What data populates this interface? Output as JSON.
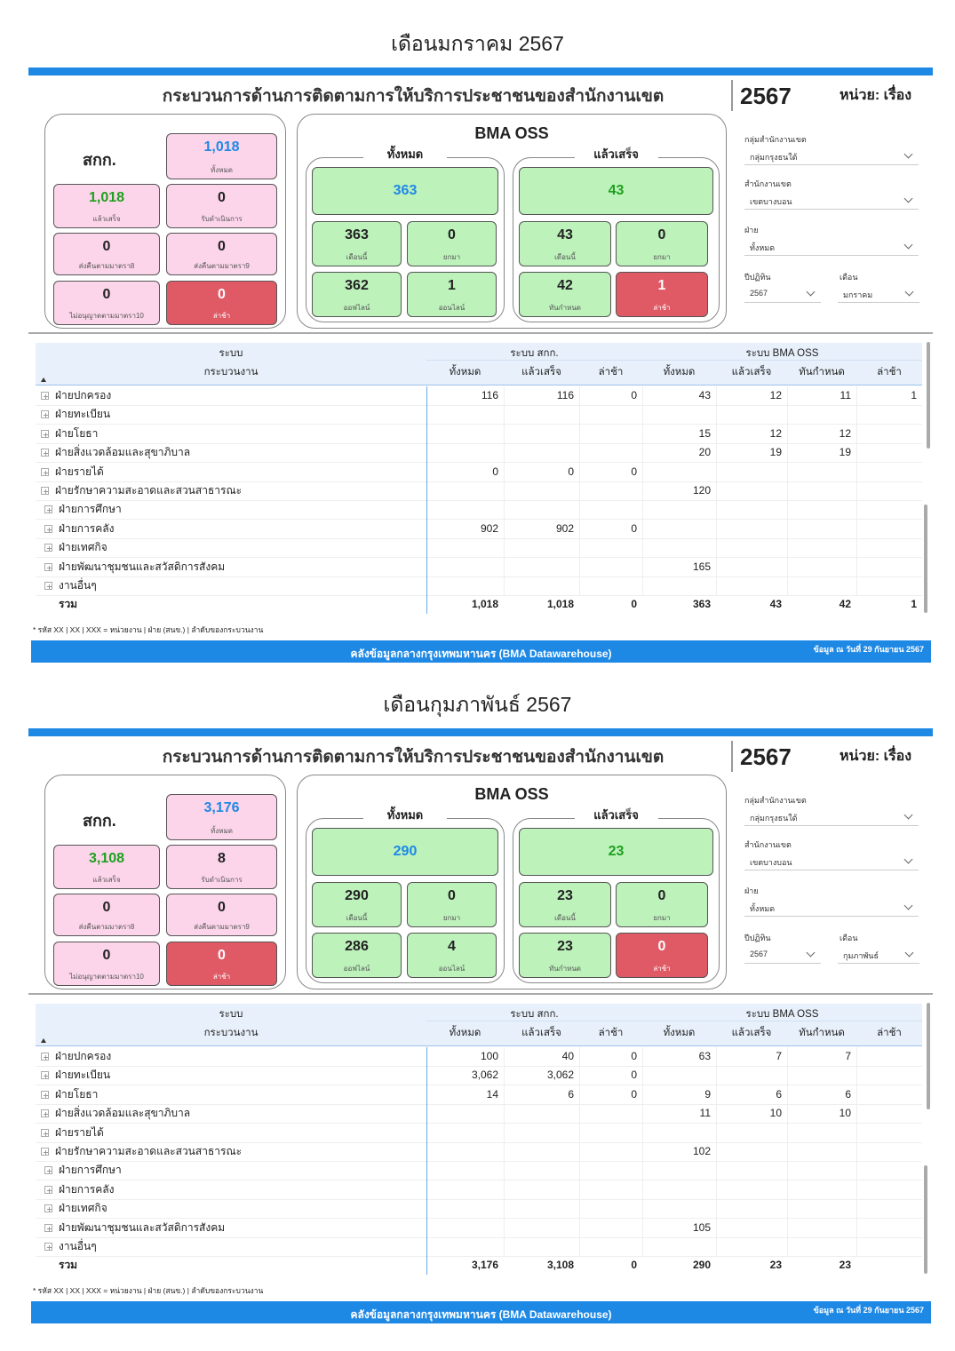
{
  "panels": [
    {
      "month_title": "เดือนมกราคม 2567",
      "header": {
        "title": "กระบวนการด้านการติดตามการให้บริการประชาชนของสำนักงานเขต",
        "year": "2567",
        "unit": "หน่วย: เรื่อง"
      },
      "skk": {
        "label": "สกก.",
        "cards": [
          {
            "value": "1,018",
            "label": "ทั้งหมด"
          },
          {
            "value": "1,018",
            "label": "แล้วเสร็จ"
          },
          {
            "value": "0",
            "label": "รับดำเนินการ"
          },
          {
            "value": "0",
            "label": "ส่งคืนตามมาตรา8"
          },
          {
            "value": "0",
            "label": "ส่งคืนตามมาตรา9"
          },
          {
            "value": "0",
            "label": "ไม่อนุญาตตามมาตรา10"
          },
          {
            "value": "0",
            "label": "ล่าช้า"
          }
        ]
      },
      "oss": {
        "title": "BMA OSS",
        "groups": [
          {
            "title": "ทั้งหมด",
            "main": "363",
            "cards": [
              {
                "value": "363",
                "label": "เดือนนี้"
              },
              {
                "value": "0",
                "label": "ยกมา"
              },
              {
                "value": "362",
                "label": "ออฟไลน์"
              },
              {
                "value": "1",
                "label": "ออนไลน์"
              }
            ]
          },
          {
            "title": "แล้วเสร็จ",
            "main": "43",
            "cards": [
              {
                "value": "43",
                "label": "เดือนนี้"
              },
              {
                "value": "0",
                "label": "ยกมา"
              },
              {
                "value": "42",
                "label": "ทันกำหนด"
              },
              {
                "value": "1",
                "label": "ล่าช้า"
              }
            ]
          }
        ]
      },
      "filters": [
        {
          "label": "กลุ่มสำนักงานเขต",
          "value": "กลุ่มกรุงธนใต้"
        },
        {
          "label": "สำนักงานเขต",
          "value": "เขตบางบอน"
        },
        {
          "label": "ฝ่าย",
          "value": "ทั้งหมด"
        },
        {
          "label": "ปีปฏิทิน",
          "value": "2567"
        },
        {
          "label": "เดือน",
          "value": "มกราคม"
        }
      ],
      "table": {
        "group_headers": [
          "ระบบ",
          "ระบบ สกก.",
          "ระบบ BMA OSS"
        ],
        "columns": [
          "กระบวนงาน",
          "ทั้งหมด",
          "แล้วเสร็จ",
          "ล่าช้า",
          "ทั้งหมด",
          "แล้วเสร็จ",
          "ทันกำหนด",
          "ล่าช้า"
        ],
        "rows": [
          {
            "name": "ฝ่ายปกครอง",
            "cells": [
              "116",
              "116",
              "0",
              "43",
              "12",
              "11",
              "1"
            ]
          },
          {
            "name": "ฝ่ายทะเบียน",
            "cells": [
              null,
              null,
              null,
              null,
              null,
              null,
              null
            ]
          },
          {
            "name": "ฝ่ายโยธา",
            "cells": [
              null,
              null,
              null,
              "15",
              "12",
              "12",
              null
            ]
          },
          {
            "name": "ฝ่ายสิ่งแวดล้อมและสุขาภิบาล",
            "cells": [
              null,
              null,
              null,
              "20",
              "19",
              "19",
              null
            ]
          },
          {
            "name": "ฝ่ายรายได้",
            "cells": [
              "0",
              "0",
              "0",
              null,
              null,
              null,
              null
            ]
          },
          {
            "name": "ฝ่ายรักษาความสะอาดและสวนสาธารณะ",
            "cells": [
              null,
              null,
              null,
              "120",
              null,
              null,
              null
            ]
          },
          {
            "name": "ฝ่ายการศึกษา",
            "cells": [
              null,
              null,
              null,
              null,
              null,
              null,
              null
            ]
          },
          {
            "name": "ฝ่ายการคลัง",
            "cells": [
              "902",
              "902",
              "0",
              null,
              null,
              null,
              null
            ]
          },
          {
            "name": "ฝ่ายเทศกิจ",
            "cells": [
              null,
              null,
              null,
              null,
              null,
              null,
              null
            ]
          },
          {
            "name": "ฝ่ายพัฒนาชุมชนและสวัสดิการสังคม",
            "cells": [
              null,
              null,
              null,
              "165",
              null,
              null,
              null
            ]
          },
          {
            "name": "งานอื่นๆ",
            "cells": [
              null,
              null,
              null,
              null,
              null,
              null,
              null
            ]
          }
        ],
        "total": {
          "label": "รวม",
          "cells": [
            "1,018",
            "1,018",
            "0",
            "363",
            "43",
            "42",
            "1"
          ]
        }
      },
      "footnote": "* รหัส XX | XX | XXX = หน่วยงาน | ฝ่าย (สนข.) | ลำดับของกระบวนงาน",
      "footer": {
        "source": "คลังข้อมูลกลางกรุงเทพมหานคร (BMA Datawarehouse)",
        "date": "ข้อมูล ณ วันที่  29 กันยายน 2567"
      }
    },
    {
      "month_title": "เดือนกุมภาพันธ์ 2567",
      "header": {
        "title": "กระบวนการด้านการติดตามการให้บริการประชาชนของสำนักงานเขต",
        "year": "2567",
        "unit": "หน่วย: เรื่อง"
      },
      "skk": {
        "label": "สกก.",
        "cards": [
          {
            "value": "3,176",
            "label": "ทั้งหมด"
          },
          {
            "value": "3,108",
            "label": "แล้วเสร็จ"
          },
          {
            "value": "8",
            "label": "รับดำเนินการ"
          },
          {
            "value": "0",
            "label": "ส่งคืนตามมาตรา8"
          },
          {
            "value": "0",
            "label": "ส่งคืนตามมาตรา9"
          },
          {
            "value": "0",
            "label": "ไม่อนุญาตตามมาตรา10"
          },
          {
            "value": "0",
            "label": "ล่าช้า"
          }
        ]
      },
      "oss": {
        "title": "BMA OSS",
        "groups": [
          {
            "title": "ทั้งหมด",
            "main": "290",
            "cards": [
              {
                "value": "290",
                "label": "เดือนนี้"
              },
              {
                "value": "0",
                "label": "ยกมา"
              },
              {
                "value": "286",
                "label": "ออฟไลน์"
              },
              {
                "value": "4",
                "label": "ออนไลน์"
              }
            ]
          },
          {
            "title": "แล้วเสร็จ",
            "main": "23",
            "cards": [
              {
                "value": "23",
                "label": "เดือนนี้"
              },
              {
                "value": "0",
                "label": "ยกมา"
              },
              {
                "value": "23",
                "label": "ทันกำหนด"
              },
              {
                "value": "0",
                "label": "ล่าช้า"
              }
            ]
          }
        ]
      },
      "filters": [
        {
          "label": "กลุ่มสำนักงานเขต",
          "value": "กลุ่มกรุงธนใต้"
        },
        {
          "label": "สำนักงานเขต",
          "value": "เขตบางบอน"
        },
        {
          "label": "ฝ่าย",
          "value": "ทั้งหมด"
        },
        {
          "label": "ปีปฏิทิน",
          "value": "2567"
        },
        {
          "label": "เดือน",
          "value": "กุมภาพันธ์"
        }
      ],
      "table": {
        "group_headers": [
          "ระบบ",
          "ระบบ สกก.",
          "ระบบ BMA OSS"
        ],
        "columns": [
          "กระบวนงาน",
          "ทั้งหมด",
          "แล้วเสร็จ",
          "ล่าช้า",
          "ทั้งหมด",
          "แล้วเสร็จ",
          "ทันกำหนด",
          "ล่าช้า"
        ],
        "rows": [
          {
            "name": "ฝ่ายปกครอง",
            "cells": [
              "100",
              "40",
              "0",
              "63",
              "7",
              "7",
              null
            ]
          },
          {
            "name": "ฝ่ายทะเบียน",
            "cells": [
              "3,062",
              "3,062",
              "0",
              null,
              null,
              null,
              null
            ]
          },
          {
            "name": "ฝ่ายโยธา",
            "cells": [
              "14",
              "6",
              "0",
              "9",
              "6",
              "6",
              null
            ]
          },
          {
            "name": "ฝ่ายสิ่งแวดล้อมและสุขาภิบาล",
            "cells": [
              null,
              null,
              null,
              "11",
              "10",
              "10",
              null
            ]
          },
          {
            "name": "ฝ่ายรายได้",
            "cells": [
              null,
              null,
              null,
              null,
              null,
              null,
              null
            ]
          },
          {
            "name": "ฝ่ายรักษาความสะอาดและสวนสาธารณะ",
            "cells": [
              null,
              null,
              null,
              "102",
              null,
              null,
              null
            ]
          },
          {
            "name": "ฝ่ายการศึกษา",
            "cells": [
              null,
              null,
              null,
              null,
              null,
              null,
              null
            ]
          },
          {
            "name": "ฝ่ายการคลัง",
            "cells": [
              null,
              null,
              null,
              null,
              null,
              null,
              null
            ]
          },
          {
            "name": "ฝ่ายเทศกิจ",
            "cells": [
              null,
              null,
              null,
              null,
              null,
              null,
              null
            ]
          },
          {
            "name": "ฝ่ายพัฒนาชุมชนและสวัสดิการสังคม",
            "cells": [
              null,
              null,
              null,
              "105",
              null,
              null,
              null
            ]
          },
          {
            "name": "งานอื่นๆ",
            "cells": [
              null,
              null,
              null,
              null,
              null,
              null,
              null
            ]
          }
        ],
        "total": {
          "label": "รวม",
          "cells": [
            "3,176",
            "3,108",
            "0",
            "290",
            "23",
            "23",
            null
          ]
        }
      },
      "footnote": "* รหัส XX | XX | XXX = หน่วยงาน | ฝ่าย (สนข.) | ลำดับของกระบวนงาน",
      "footer": {
        "source": "คลังข้อมูลกลางกรุงเทพมหานคร (BMA Datawarehouse)",
        "date": "ข้อมูล ณ วันที่  29 กันยายน 2567"
      }
    }
  ]
}
